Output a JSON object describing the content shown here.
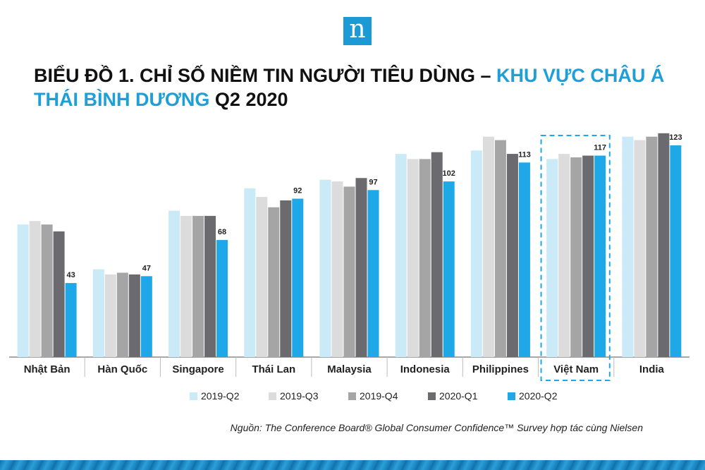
{
  "logo": {
    "letter": "n"
  },
  "title": {
    "line1_dark": "BIỂU ĐỒ 1. CHỈ SỐ NIỀM TIN NGƯỜI TIÊU DÙNG – ",
    "line1_highlight": "KHU VỰC CHÂU Á",
    "line2_highlight": "THÁI BÌNH DƯƠNG",
    "line2_dark": " Q2 2020"
  },
  "source": "Nguồn: The Conference Board® Global Consumer Confidence™ Survey hợp tác cùng Nielsen",
  "chart_data": {
    "type": "bar",
    "categories": [
      "Nhật Bản",
      "Hàn Quốc",
      "Singapore",
      "Thái Lan",
      "Malaysia",
      "Indonesia",
      "Philippines",
      "Việt Nam",
      "India"
    ],
    "series": [
      {
        "name": "2019-Q2",
        "color": "#cbeaf8",
        "values": [
          77,
          51,
          85,
          98,
          103,
          118,
          120,
          115,
          128
        ]
      },
      {
        "name": "2019-Q3",
        "color": "#dcdcdc",
        "values": [
          79,
          48,
          82,
          93,
          102,
          115,
          128,
          118,
          126
        ]
      },
      {
        "name": "2019-Q4",
        "color": "#a5a5a5",
        "values": [
          77,
          49,
          82,
          87,
          99,
          115,
          126,
          116,
          128
        ]
      },
      {
        "name": "2020-Q1",
        "color": "#6b6b6f",
        "values": [
          73,
          48,
          82,
          91,
          104,
          119,
          118,
          117,
          130
        ]
      },
      {
        "name": "2020-Q2",
        "color": "#1ea8e8",
        "values": [
          43,
          47,
          68,
          92,
          97,
          102,
          113,
          117,
          123
        ]
      }
    ],
    "data_labels": [
      "43",
      "47",
      "68",
      "92",
      "97",
      "102",
      "113",
      "117",
      "123"
    ],
    "highlight_category": "Việt Nam",
    "ylim": [
      0,
      140
    ],
    "grid": false,
    "legend_position": "bottom"
  }
}
